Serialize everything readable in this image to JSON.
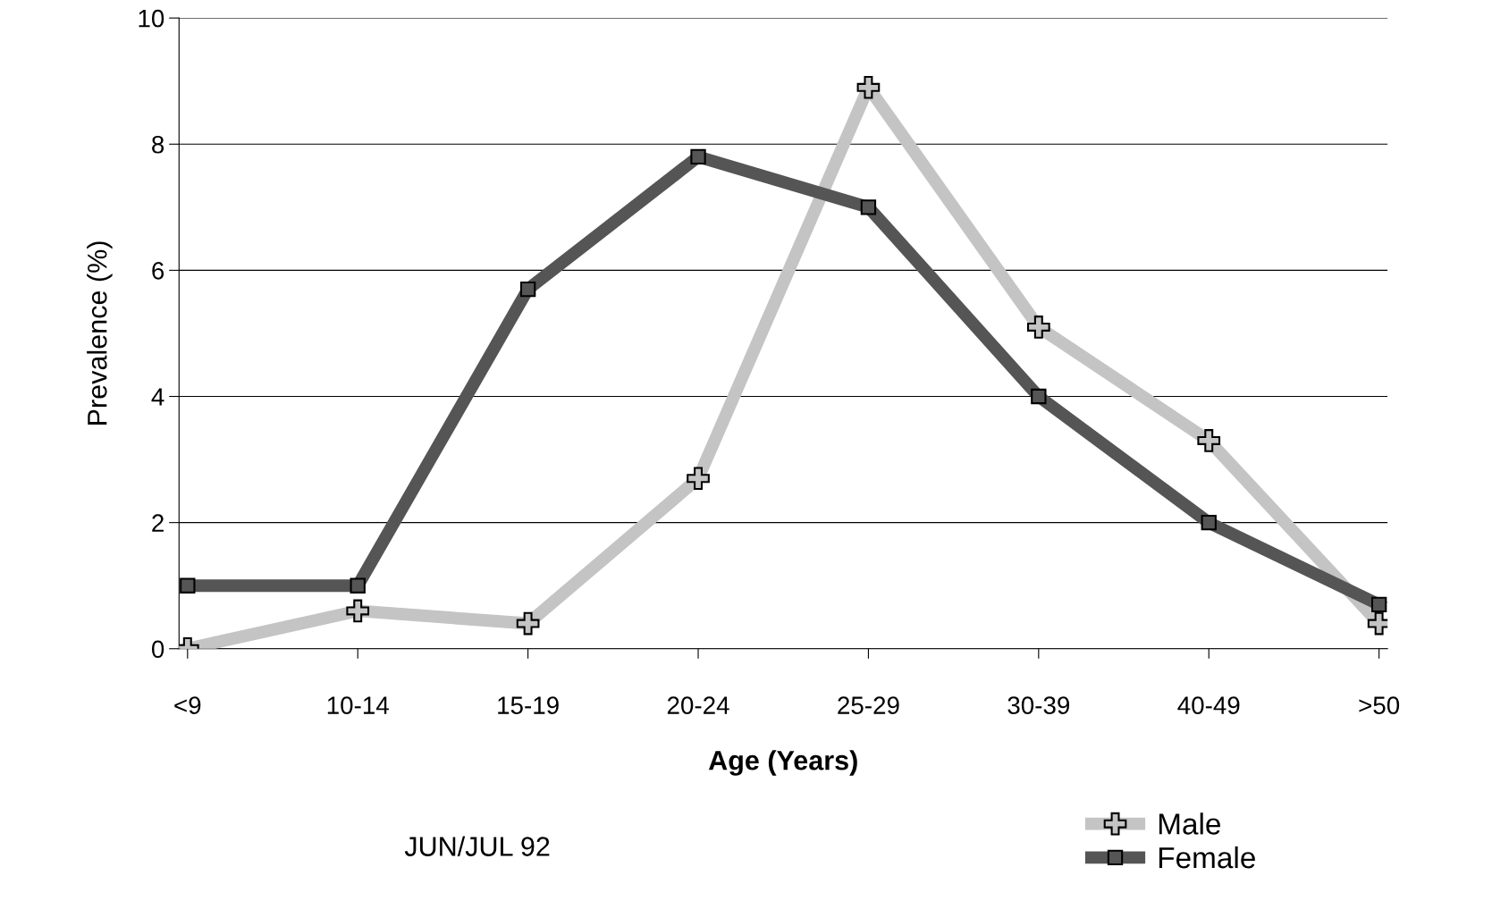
{
  "chart_data": {
    "type": "line",
    "xlabel": "Age (Years)",
    "ylabel": "Prevalence (%)",
    "categories": [
      "<9",
      "10-14",
      "15-19",
      "20-24",
      "25-29",
      "30-39",
      "40-49",
      ">50"
    ],
    "series": [
      {
        "name": "Male",
        "color": "#c4c4c4",
        "marker": "cross",
        "values": [
          0,
          0.6,
          0.4,
          2.7,
          8.9,
          5.1,
          3.3,
          0.4
        ]
      },
      {
        "name": "Female",
        "color": "#555555",
        "marker": "square",
        "values": [
          1.0,
          1.0,
          5.7,
          7.8,
          7.0,
          4.0,
          2.0,
          0.7
        ]
      }
    ],
    "ylim": [
      0,
      10
    ],
    "yticks": [
      0,
      2,
      4,
      6,
      8,
      10
    ],
    "grid": "y",
    "legend": "bottom right",
    "annotations": [
      "JUN/JUL 92"
    ]
  }
}
